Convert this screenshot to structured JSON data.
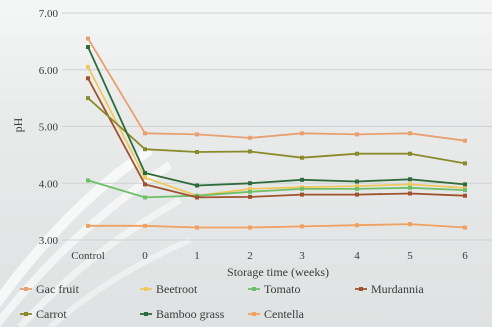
{
  "chart_data": {
    "type": "line",
    "categories": [
      "Control",
      "0",
      "1",
      "2",
      "3",
      "4",
      "5",
      "6"
    ],
    "xlabel": "Storage time (weeks)",
    "ylabel": "pH",
    "ylim": [
      3.0,
      7.0
    ],
    "yticks": [
      "3.00",
      "4.00",
      "5.00",
      "6.00",
      "7.00"
    ],
    "grid": true,
    "legend_position": "bottom",
    "series": [
      {
        "name": "Gac fruit",
        "color": "#e8a070",
        "values": [
          6.55,
          4.88,
          4.86,
          4.8,
          4.88,
          4.86,
          4.88,
          4.75
        ]
      },
      {
        "name": "Beetroot",
        "color": "#f0c860",
        "values": [
          6.05,
          4.1,
          3.78,
          3.9,
          3.93,
          3.95,
          3.98,
          3.92
        ]
      },
      {
        "name": "Tomato",
        "color": "#6fbf6a",
        "values": [
          4.05,
          3.75,
          3.78,
          3.85,
          3.9,
          3.9,
          3.92,
          3.88
        ]
      },
      {
        "name": "Murdannia",
        "color": "#a0522d",
        "values": [
          5.85,
          3.98,
          3.75,
          3.76,
          3.8,
          3.8,
          3.82,
          3.78
        ]
      },
      {
        "name": "Carrot",
        "color": "#8a8a2a",
        "values": [
          5.5,
          4.6,
          4.55,
          4.56,
          4.45,
          4.52,
          4.52,
          4.35
        ]
      },
      {
        "name": "Bamboo grass",
        "color": "#2e6b3a",
        "values": [
          6.4,
          4.18,
          3.96,
          4.0,
          4.06,
          4.03,
          4.07,
          3.98
        ]
      },
      {
        "name": "Centella",
        "color": "#f0a060",
        "values": [
          3.25,
          3.25,
          3.22,
          3.22,
          3.24,
          3.26,
          3.28,
          3.22
        ]
      }
    ]
  }
}
